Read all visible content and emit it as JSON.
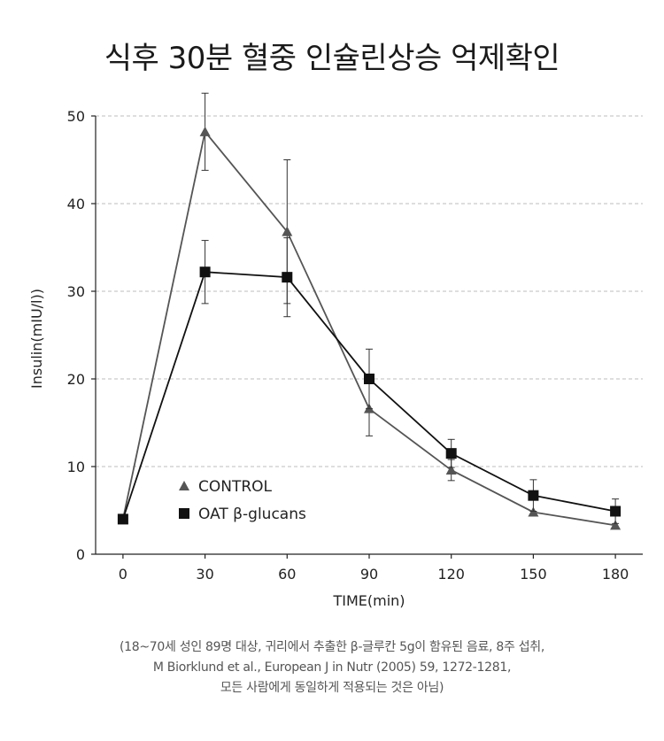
{
  "chart_data": {
    "type": "line",
    "title": "식후 30분 혈중 인슐린상승 억제확인",
    "xlabel": "TIME(min)",
    "ylabel": "Insulin(mIU/l))",
    "x": [
      0,
      30,
      60,
      90,
      120,
      150,
      180
    ],
    "xlim": [
      -10,
      190
    ],
    "ylim": [
      0,
      50
    ],
    "yticks": [
      0,
      10,
      20,
      30,
      40,
      50
    ],
    "grid": "horizontal-dashed",
    "legend_position": "lower-left",
    "series": [
      {
        "name": "CONTROL",
        "marker": "triangle",
        "color": "#555555",
        "values": [
          4.0,
          48.2,
          36.8,
          16.6,
          9.6,
          4.8,
          3.3
        ],
        "error": [
          0,
          4.4,
          8.2,
          3.1,
          1.2,
          0,
          0
        ]
      },
      {
        "name": "OAT β-glucans",
        "marker": "square",
        "color": "#111111",
        "values": [
          4.0,
          32.2,
          31.6,
          20.0,
          11.5,
          6.7,
          4.9
        ],
        "error": [
          0,
          3.6,
          4.5,
          3.4,
          1.6,
          1.8,
          1.4
        ]
      }
    ]
  },
  "footnote": {
    "line1": "(18~70세 성인 89명 대상, 귀리에서 추출한  β-글루칸 5g이 함유된 음료, 8주 섭취,",
    "line2": "M Biorklund et al., European J in Nutr (2005) 59, 1272-1281,",
    "line3": "모든 사람에게 동일하게 적용되는 것은 아님)"
  }
}
